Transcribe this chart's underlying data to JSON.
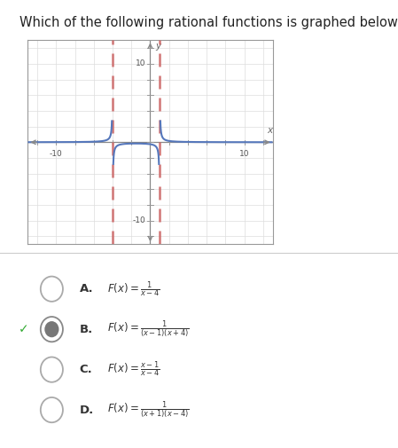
{
  "title": "Which of the following rational functions is graphed below?",
  "title_fontsize": 10.5,
  "graph_xlim": [
    -13,
    13
  ],
  "graph_ylim": [
    -13,
    13
  ],
  "asymptotes": [
    -4,
    1
  ],
  "asymptote_color": "#cc6666",
  "curve_color": "#5577bb",
  "axis_color": "#888888",
  "grid_color": "#dddddd",
  "bg_color": "#ffffff",
  "plot_bg": "#ffffff",
  "tick_label_color": "#555555",
  "selected_idx": 1,
  "options_A_label": "A.",
  "options_B_label": "B.",
  "options_C_label": "C.",
  "options_D_label": "D.",
  "fig_width": 4.49,
  "fig_height": 5.05,
  "dpi": 100
}
